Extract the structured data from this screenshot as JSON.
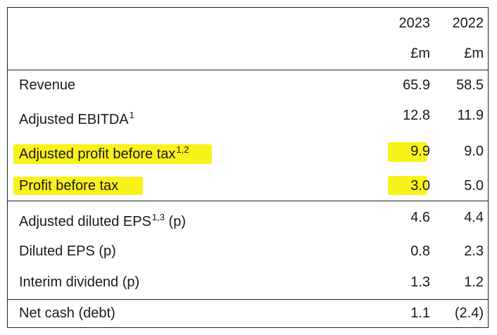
{
  "header": {
    "year_current": "2023",
    "year_prior": "2022",
    "unit_current": "£m",
    "unit_prior": "£m"
  },
  "rows": [
    {
      "label": "Revenue",
      "sup": "",
      "v2023": "65.9",
      "v2022": "58.5"
    },
    {
      "label": "Adjusted EBITDA",
      "sup": "1",
      "v2023": "12.8",
      "v2022": "11.9"
    },
    {
      "label": "Adjusted profit before tax",
      "sup": "1,2",
      "v2023": "9.9",
      "v2022": "9.0"
    },
    {
      "label": "Profit before tax",
      "sup": "",
      "v2023": "3.0",
      "v2022": "5.0"
    },
    {
      "label": "Adjusted diluted EPS",
      "sup": "1,3",
      "suffix": " (p)",
      "v2023": "4.6",
      "v2022": "4.4"
    },
    {
      "label": "Diluted EPS (p)",
      "sup": "",
      "v2023": "0.8",
      "v2022": "2.3"
    },
    {
      "label": "Interim dividend (p)",
      "sup": "",
      "v2023": "1.3",
      "v2022": "1.2"
    },
    {
      "label": "Net cash (debt)",
      "sup": "",
      "v2023": "1.1",
      "v2022": "(2.4)"
    }
  ],
  "highlight_color": "#f9f21a"
}
